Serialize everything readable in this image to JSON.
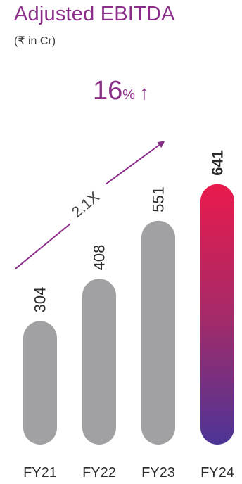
{
  "header": {
    "title": "Adjusted EBITDA",
    "subtitle": "(₹ in Cr)"
  },
  "growth": {
    "value": "16",
    "unit": "%",
    "arrow_icon": "up-arrow"
  },
  "annotation": {
    "multiplier_label": "2.1X"
  },
  "colors": {
    "bar_gray": "#a1a1a3",
    "gradient_top": "#ea1a4c",
    "gradient_bottom": "#4c3596",
    "accent": "#8b2e8a"
  },
  "chart_data": {
    "type": "bar",
    "title": "Adjusted EBITDA",
    "subtitle": "(₹ in Cr)",
    "categories": [
      "FY21",
      "FY22",
      "FY23",
      "FY24"
    ],
    "values": [
      304,
      408,
      551,
      641
    ],
    "value_labels": [
      "304",
      "408",
      "551",
      "641"
    ],
    "highlight_index": 3,
    "xlabel": "",
    "ylabel": "",
    "grid": false,
    "legend": "none"
  }
}
